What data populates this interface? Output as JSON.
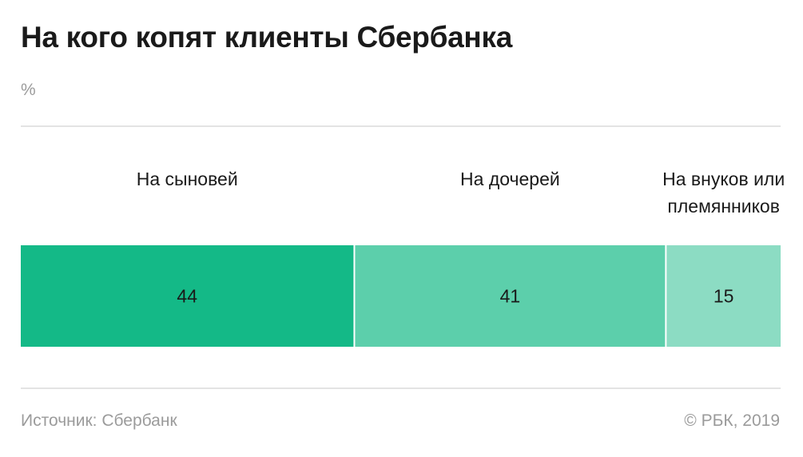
{
  "header": {
    "title": "На кого копят клиенты Сбербанка",
    "unit": "%"
  },
  "chart_data": {
    "type": "bar",
    "subtype": "100% stacked horizontal bar",
    "categories": [
      "На сыновей",
      "На дочерей",
      "На внуков или племянников"
    ],
    "category_lines": [
      [
        "На сыновей"
      ],
      [
        "На дочерей"
      ],
      [
        "На внуков или",
        "племянников"
      ]
    ],
    "values": [
      44,
      41,
      15
    ],
    "colors": [
      "#14b987",
      "#5ccfab",
      "#8cdcc3"
    ],
    "ylabel": "%"
  },
  "footer": {
    "source": "Источник: Сбербанк",
    "credit": "© РБК, 2019"
  }
}
